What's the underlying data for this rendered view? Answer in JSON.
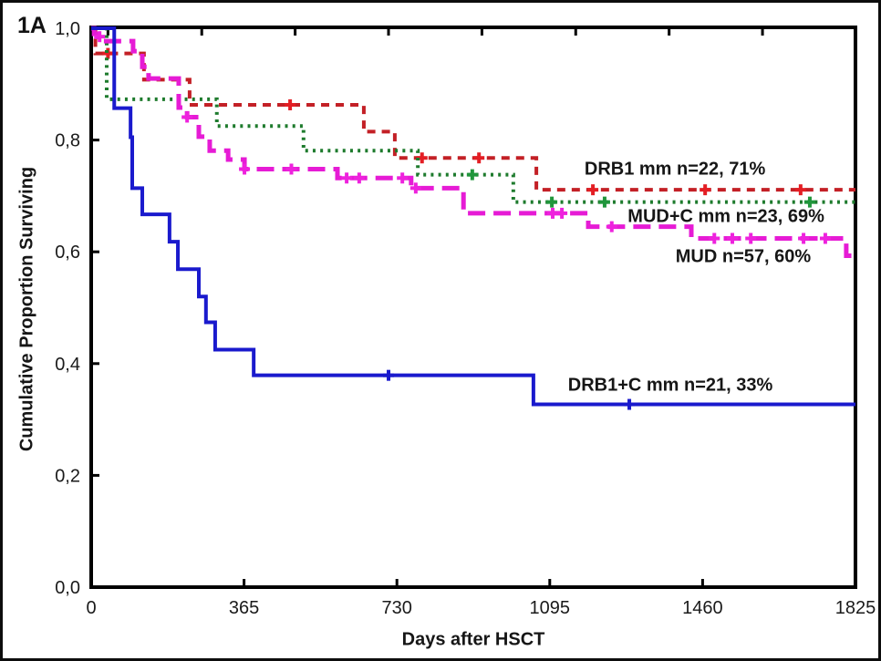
{
  "figure": {
    "panel_label": "1A",
    "background_color": "#ffffff",
    "frame_color": "#0d0d0d"
  },
  "chart_data": {
    "type": "line",
    "subtype": "kaplan-meier-step-survival",
    "title": "",
    "xlabel": "Days after HSCT",
    "ylabel": "Cumulative Proportion Surviving",
    "xlim": [
      0,
      1825
    ],
    "ylim": [
      0.0,
      1.0
    ],
    "grid": false,
    "legend_position": "inline-annotations",
    "x_ticks": [
      0,
      365,
      730,
      1095,
      1460,
      1825
    ],
    "x_tick_labels": [
      "0",
      "365",
      "730",
      "1095",
      "1460",
      "1825"
    ],
    "y_ticks": [
      1.0,
      0.8,
      0.6,
      0.4,
      0.2,
      0.0
    ],
    "y_tick_labels": [
      "1,0",
      "0,8",
      "0,6",
      "0,4",
      "0,2",
      "0,0"
    ],
    "top_axis_tick_days": [
      40,
      264,
      487,
      710,
      933,
      1157,
      1380,
      1603
    ],
    "axis_color": "#000000",
    "tick_label_color": "#1a1a1a",
    "series": [
      {
        "id": "drb1-mm",
        "label": "DRB1 mm n=22, 71%",
        "group": "DRB1 mm",
        "n": 22,
        "final_percent": 71,
        "color": "#c32026",
        "marker_color": "#e31e24",
        "line_style": "dashed",
        "dash": "9 7",
        "line_width": 4,
        "steps": [
          [
            0,
            1.0
          ],
          [
            10,
            0.955
          ],
          [
            126,
            0.908
          ],
          [
            235,
            0.863
          ],
          [
            651,
            0.815
          ],
          [
            725,
            0.768
          ],
          [
            1063,
            0.711
          ],
          [
            1825,
            0.711
          ]
        ],
        "censor_marks": [
          [
            40,
            0.955
          ],
          [
            475,
            0.863
          ],
          [
            790,
            0.768
          ],
          [
            926,
            0.768
          ],
          [
            1198,
            0.711
          ],
          [
            1466,
            0.711
          ],
          [
            1694,
            0.711
          ]
        ],
        "label_anchor": [
          1394,
          0.747
        ]
      },
      {
        "id": "mud-c-mm",
        "label": "MUD+C mm n=23, 69%",
        "group": "MUD+C mm",
        "n": 23,
        "final_percent": 69,
        "color": "#1e7b2d",
        "marker_color": "#21963c",
        "line_style": "dotted",
        "dash": "3 5.2",
        "line_width": 4,
        "steps": [
          [
            0,
            1.0
          ],
          [
            37,
            0.873
          ],
          [
            300,
            0.825
          ],
          [
            507,
            0.781
          ],
          [
            780,
            0.738
          ],
          [
            1008,
            0.689
          ],
          [
            1825,
            0.689
          ]
        ],
        "censor_marks": [
          [
            910,
            0.738
          ],
          [
            1100,
            0.689
          ],
          [
            1226,
            0.689
          ],
          [
            1716,
            0.689
          ]
        ],
        "label_anchor": [
          1516,
          0.662
        ]
      },
      {
        "id": "mud",
        "label": "MUD n=57, 60%",
        "group": "MUD",
        "n": 57,
        "final_percent": 60,
        "color": "#e61bd5",
        "marker_color": "#ee22dd",
        "line_style": "long-dash",
        "dash": "19 9",
        "line_width": 5,
        "steps": [
          [
            0,
            1.0
          ],
          [
            7,
            0.99
          ],
          [
            15,
            0.977
          ],
          [
            100,
            0.959
          ],
          [
            122,
            0.931
          ],
          [
            137,
            0.91
          ],
          [
            209,
            0.858
          ],
          [
            229,
            0.841
          ],
          [
            257,
            0.806
          ],
          [
            283,
            0.781
          ],
          [
            327,
            0.765
          ],
          [
            366,
            0.748
          ],
          [
            588,
            0.732
          ],
          [
            764,
            0.714
          ],
          [
            889,
            0.669
          ],
          [
            1187,
            0.645
          ],
          [
            1433,
            0.624
          ],
          [
            1803,
            0.593
          ],
          [
            1825,
            0.593
          ]
        ],
        "censor_marks": [
          [
            20,
            0.985
          ],
          [
            229,
            0.841
          ],
          [
            366,
            0.748
          ],
          [
            478,
            0.748
          ],
          [
            610,
            0.732
          ],
          [
            640,
            0.732
          ],
          [
            743,
            0.732
          ],
          [
            775,
            0.714
          ],
          [
            1102,
            0.669
          ],
          [
            1124,
            0.669
          ],
          [
            1243,
            0.645
          ],
          [
            1488,
            0.624
          ],
          [
            1531,
            0.624
          ],
          [
            1575,
            0.624
          ],
          [
            1701,
            0.624
          ],
          [
            1753,
            0.624
          ]
        ],
        "label_anchor": [
          1557,
          0.59
        ]
      },
      {
        "id": "drb1-c-mm",
        "label": "DRB1+C mm n=21, 33%",
        "group": "DRB1+C mm",
        "n": 21,
        "final_percent": 33,
        "color": "#1a1acd",
        "marker_color": "#1a1acd",
        "line_style": "solid",
        "dash": "",
        "line_width": 4,
        "steps": [
          [
            0,
            1.0
          ],
          [
            55,
            0.857
          ],
          [
            94,
            0.805
          ],
          [
            98,
            0.714
          ],
          [
            122,
            0.667
          ],
          [
            187,
            0.618
          ],
          [
            207,
            0.569
          ],
          [
            257,
            0.52
          ],
          [
            274,
            0.474
          ],
          [
            296,
            0.425
          ],
          [
            388,
            0.379
          ],
          [
            1056,
            0.327
          ],
          [
            1825,
            0.327
          ]
        ],
        "censor_marks": [
          [
            710,
            0.379
          ],
          [
            1285,
            0.327
          ]
        ],
        "label_anchor": [
          1383,
          0.36
        ]
      }
    ]
  }
}
